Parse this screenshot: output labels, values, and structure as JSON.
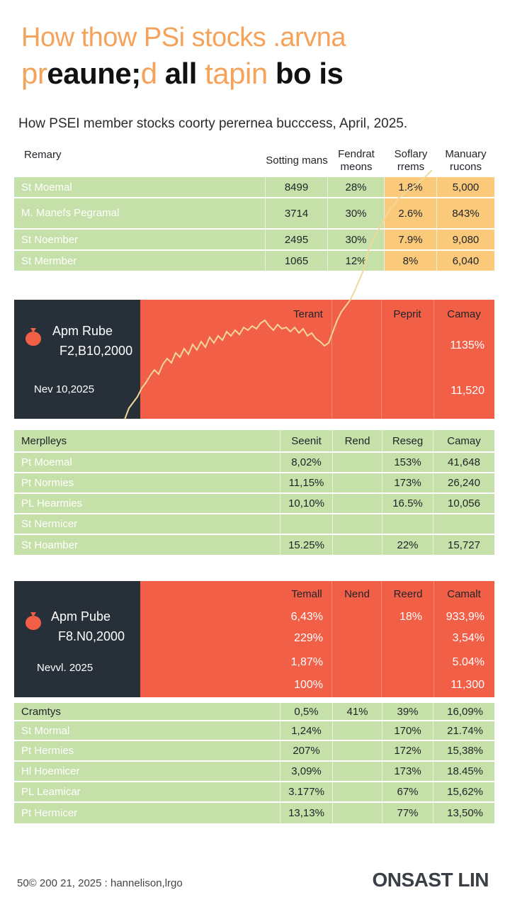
{
  "header": {
    "title_line1": "How thow PSi stocks .arvna",
    "title_line2_a": "pr",
    "title_line2_b": "eaune;",
    "title_line2_c": "d",
    "title_line2_d": " all ",
    "title_line2_e": "tapin",
    "title_line2_f": " bo is",
    "subtitle": "How PSEI member stocks coorty perernea bucccess, April, 2025."
  },
  "table1": {
    "headers": [
      "Remary",
      "Sotting mans",
      "Fendrat meons",
      "Soflary rrems",
      "Manuary rucons"
    ],
    "rows": [
      {
        "name": "St Moemal",
        "v1": "8499",
        "v2": "28%",
        "v3": "1.8%",
        "v4": "5,000"
      },
      {
        "name": "M. Manefs Pegramal",
        "v1": "3714",
        "v2": "30%",
        "v3": "2.6%",
        "v4": "843%"
      },
      {
        "name": "St Noember",
        "v1": "2495",
        "v2": "30%",
        "v3": "7.9%",
        "v4": "9,080"
      },
      {
        "name": "St Mermber",
        "v1": "1065",
        "v2": "12%",
        "v3": "8%",
        "v4": "6,040"
      }
    ]
  },
  "panel1": {
    "name": "Apm Rube",
    "code": "F2,B10,2000",
    "date": "Nev 10,2025",
    "headers": [
      "Terant",
      "Peprit",
      "Camay"
    ],
    "values": [
      "1135%",
      "11,520"
    ]
  },
  "table2": {
    "headers": [
      "Merplleys",
      "Seenit",
      "Rend",
      "Reseg",
      "Camay"
    ],
    "rows": [
      {
        "name": "Pt Moemal",
        "v1": "8,02%",
        "v2": "",
        "v3": "153%",
        "v4": "41,648"
      },
      {
        "name": "Pt Normies",
        "v1": "11,15%",
        "v2": "",
        "v3": "173%",
        "v4": "26,240"
      },
      {
        "name": "PL Hearmies",
        "v1": "10,10%",
        "v2": "",
        "v3": "16.5%",
        "v4": "10,056"
      },
      {
        "name": "St Nermicer",
        "v1": "",
        "v2": "",
        "v3": "",
        "v4": ""
      },
      {
        "name": "St Hoamber",
        "v1": "15.25%",
        "v2": "",
        "v3": "22%",
        "v4": "15,727"
      }
    ]
  },
  "panel2": {
    "name": "Apm Pube",
    "code": "F8.N0,2000",
    "date": "Nevvl. 2025",
    "headers": [
      "Temall",
      "Nend",
      "Reerd",
      "Camalt"
    ],
    "col1": [
      "6,43%",
      "229%",
      "1,87%",
      "100%"
    ],
    "col3": [
      "18%",
      "",
      "",
      ""
    ],
    "col4": [
      "933,9%",
      "3,54%",
      "5.04%",
      "11,300"
    ]
  },
  "table3": {
    "rows": [
      {
        "name": "Cramtys",
        "v1": "0,5%",
        "v2": "41%",
        "v3": "39%",
        "v4": "16,09%"
      },
      {
        "name": "St Mormal",
        "v1": "1,24%",
        "v2": "",
        "v3": "170%",
        "v4": "21.74%"
      },
      {
        "name": "Pt Hermies",
        "v1": "207%",
        "v2": "",
        "v3": "172%",
        "v4": "15,38%"
      },
      {
        "name": "Hl Hoemicer",
        "v1": "3,09%",
        "v2": "",
        "v3": "173%",
        "v4": "18.45%"
      },
      {
        "name": "PL Leamicar",
        "v1": "3.177%",
        "v2": "",
        "v3": "67%",
        "v4": "15,62%"
      },
      {
        "name": "Pt Hermicer",
        "v1": "13,13%",
        "v2": "",
        "v3": "77%",
        "v4": "13,50%"
      }
    ]
  },
  "footer": {
    "left": "50© 200 21, 2025 : hannelison,lrgo",
    "right": "ONSAST LIN"
  },
  "colors": {
    "green": "#c5e0a8",
    "orange": "#f25f47",
    "dark": "#273038",
    "yellow": "#fbc97a",
    "title_orange": "#f5a25a",
    "line": "#f3d79a"
  },
  "icons": [
    "money-bag-icon"
  ]
}
